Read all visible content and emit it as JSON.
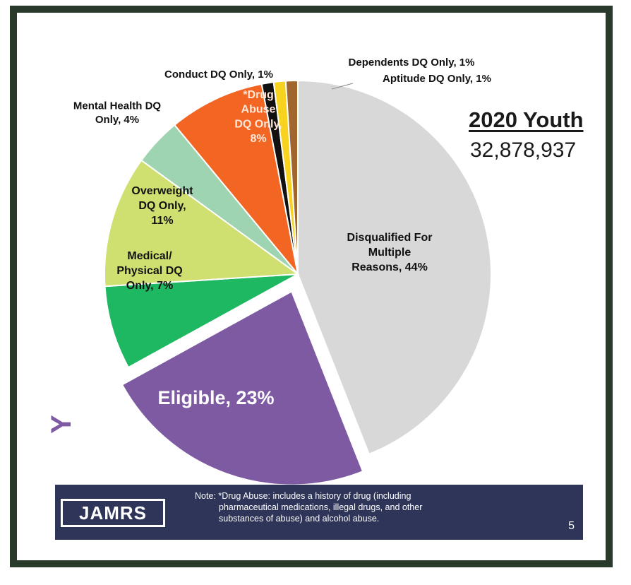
{
  "chart_data": {
    "type": "pie",
    "title": "2020 Youth",
    "subtitle": "32,878,937",
    "slices": [
      {
        "label_lines": [
          "Disqualified For",
          "Multiple",
          "Reasons, 44%"
        ],
        "value": 44,
        "color": "#d8d8d8",
        "text_color": "#111111"
      },
      {
        "label_lines": [
          "Eligible, 23%"
        ],
        "value": 23,
        "color": "#7e5aa3",
        "text_color": "#ffffff",
        "exploded": true
      },
      {
        "label_lines": [
          "Medical/",
          "Physical DQ",
          "Only, 7%"
        ],
        "value": 7,
        "color": "#1fb862",
        "text_color": "#111111"
      },
      {
        "label_lines": [
          "Overweight",
          "DQ Only,",
          "11%"
        ],
        "value": 11,
        "color": "#cfe070",
        "text_color": "#111111"
      },
      {
        "label_lines": [
          "Mental Health DQ",
          "Only, 4%"
        ],
        "value": 4,
        "color": "#9fd4b2",
        "text_color": "#111111",
        "outside": true
      },
      {
        "label_lines": [
          "*Drug",
          "Abuse",
          "DQ Only,",
          "8%"
        ],
        "value": 8,
        "color": "#f26522",
        "text_color": "#ffe6d6"
      },
      {
        "label_lines": [
          "Conduct DQ Only, 1%"
        ],
        "value": 1,
        "color": "#111111",
        "text_color": "#111111",
        "outside": true
      },
      {
        "label_lines": [
          "Dependents DQ Only, 1%"
        ],
        "value": 1,
        "color": "#f7d21e",
        "text_color": "#111111",
        "outside": true
      },
      {
        "label_lines": [
          "Aptitude DQ Only, 1%"
        ],
        "value": 1,
        "color": "#a0662e",
        "text_color": "#111111",
        "outside": true
      }
    ]
  },
  "side_glyph": "Y",
  "footer": {
    "logo": "JAMRS",
    "note_lines": [
      "Note: *Drug Abuse: includes a history of drug (including",
      "pharmaceutical medications, illegal drugs, and other",
      "substances of abuse) and alcohol abuse."
    ],
    "page_number": "5"
  }
}
